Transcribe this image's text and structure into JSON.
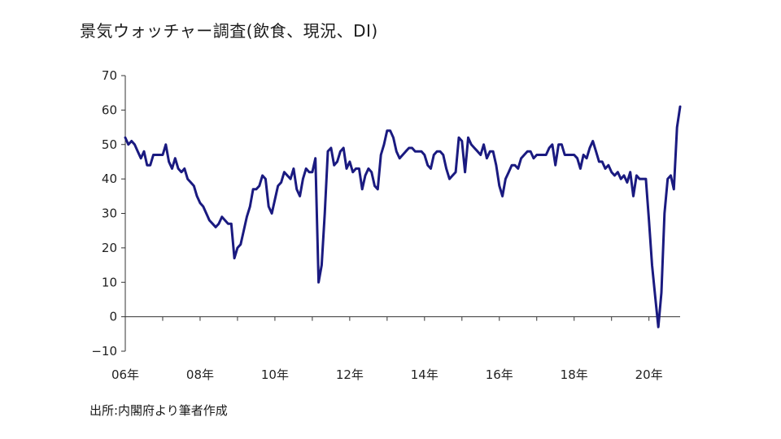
{
  "chart_title": "景気ウォッチャー調査(飲食、現況、DI)",
  "source": "出所:内閣府より筆者作成",
  "colors": {
    "line": "#1a1a80",
    "axis": "#333333"
  },
  "chart_data": {
    "type": "line",
    "title": "景気ウォッチャー調査(飲食、現況、DI)",
    "xlabel": "",
    "ylabel": "",
    "ylim": [
      -10,
      70
    ],
    "yticks": [
      "70",
      "60",
      "50",
      "40",
      "30",
      "20",
      "10",
      "0",
      "−10"
    ],
    "xticks": [
      "06年",
      "08年",
      "10年",
      "12年",
      "14年",
      "16年",
      "18年",
      "20年"
    ],
    "xlim": [
      "2006-01",
      "2020-11"
    ],
    "grid": false,
    "series": [
      {
        "values": [
          [
            "2006-01",
            52
          ],
          [
            "2006-02",
            50
          ],
          [
            "2006-03",
            51
          ],
          [
            "2006-04",
            50
          ],
          [
            "2006-05",
            48
          ],
          [
            "2006-06",
            46
          ],
          [
            "2006-07",
            48
          ],
          [
            "2006-08",
            44
          ],
          [
            "2006-09",
            44
          ],
          [
            "2006-10",
            47
          ],
          [
            "2006-11",
            47
          ],
          [
            "2006-12",
            47
          ],
          [
            "2007-01",
            47
          ],
          [
            "2007-02",
            50
          ],
          [
            "2007-03",
            45
          ],
          [
            "2007-04",
            43
          ],
          [
            "2007-05",
            46
          ],
          [
            "2007-06",
            43
          ],
          [
            "2007-07",
            42
          ],
          [
            "2007-08",
            43
          ],
          [
            "2007-09",
            40
          ],
          [
            "2007-10",
            39
          ],
          [
            "2007-11",
            38
          ],
          [
            "2007-12",
            35
          ],
          [
            "2008-01",
            33
          ],
          [
            "2008-02",
            32
          ],
          [
            "2008-03",
            30
          ],
          [
            "2008-04",
            28
          ],
          [
            "2008-05",
            27
          ],
          [
            "2008-06",
            26
          ],
          [
            "2008-07",
            27
          ],
          [
            "2008-08",
            29
          ],
          [
            "2008-09",
            28
          ],
          [
            "2008-10",
            27
          ],
          [
            "2008-11",
            27
          ],
          [
            "2008-12",
            17
          ],
          [
            "2009-01",
            20
          ],
          [
            "2009-02",
            21
          ],
          [
            "2009-03",
            25
          ],
          [
            "2009-04",
            29
          ],
          [
            "2009-05",
            32
          ],
          [
            "2009-06",
            37
          ],
          [
            "2009-07",
            37
          ],
          [
            "2009-08",
            38
          ],
          [
            "2009-09",
            41
          ],
          [
            "2009-10",
            40
          ],
          [
            "2009-11",
            32
          ],
          [
            "2009-12",
            30
          ],
          [
            "2010-01",
            34
          ],
          [
            "2010-02",
            38
          ],
          [
            "2010-03",
            39
          ],
          [
            "2010-04",
            42
          ],
          [
            "2010-05",
            41
          ],
          [
            "2010-06",
            40
          ],
          [
            "2010-07",
            43
          ],
          [
            "2010-08",
            37
          ],
          [
            "2010-09",
            35
          ],
          [
            "2010-10",
            40
          ],
          [
            "2010-11",
            43
          ],
          [
            "2010-12",
            42
          ],
          [
            "2011-01",
            42
          ],
          [
            "2011-02",
            46
          ],
          [
            "2011-03",
            10
          ],
          [
            "2011-04",
            15
          ],
          [
            "2011-05",
            30
          ],
          [
            "2011-06",
            48
          ],
          [
            "2011-07",
            49
          ],
          [
            "2011-08",
            44
          ],
          [
            "2011-09",
            45
          ],
          [
            "2011-10",
            48
          ],
          [
            "2011-11",
            49
          ],
          [
            "2011-12",
            43
          ],
          [
            "2012-01",
            45
          ],
          [
            "2012-02",
            42
          ],
          [
            "2012-03",
            43
          ],
          [
            "2012-04",
            43
          ],
          [
            "2012-05",
            37
          ],
          [
            "2012-06",
            41
          ],
          [
            "2012-07",
            43
          ],
          [
            "2012-08",
            42
          ],
          [
            "2012-09",
            38
          ],
          [
            "2012-10",
            37
          ],
          [
            "2012-11",
            47
          ],
          [
            "2012-12",
            50
          ],
          [
            "2013-01",
            54
          ],
          [
            "2013-02",
            54
          ],
          [
            "2013-03",
            52
          ],
          [
            "2013-04",
            48
          ],
          [
            "2013-05",
            46
          ],
          [
            "2013-06",
            47
          ],
          [
            "2013-07",
            48
          ],
          [
            "2013-08",
            49
          ],
          [
            "2013-09",
            49
          ],
          [
            "2013-10",
            48
          ],
          [
            "2013-11",
            48
          ],
          [
            "2013-12",
            48
          ],
          [
            "2014-01",
            47
          ],
          [
            "2014-02",
            44
          ],
          [
            "2014-03",
            43
          ],
          [
            "2014-04",
            47
          ],
          [
            "2014-05",
            48
          ],
          [
            "2014-06",
            48
          ],
          [
            "2014-07",
            47
          ],
          [
            "2014-08",
            43
          ],
          [
            "2014-09",
            40
          ],
          [
            "2014-10",
            41
          ],
          [
            "2014-11",
            42
          ],
          [
            "2014-12",
            52
          ],
          [
            "2015-01",
            51
          ],
          [
            "2015-02",
            42
          ],
          [
            "2015-03",
            52
          ],
          [
            "2015-04",
            50
          ],
          [
            "2015-05",
            49
          ],
          [
            "2015-06",
            48
          ],
          [
            "2015-07",
            47
          ],
          [
            "2015-08",
            50
          ],
          [
            "2015-09",
            46
          ],
          [
            "2015-10",
            48
          ],
          [
            "2015-11",
            48
          ],
          [
            "2015-12",
            44
          ],
          [
            "2016-01",
            38
          ],
          [
            "2016-02",
            35
          ],
          [
            "2016-03",
            40
          ],
          [
            "2016-04",
            42
          ],
          [
            "2016-05",
            44
          ],
          [
            "2016-06",
            44
          ],
          [
            "2016-07",
            43
          ],
          [
            "2016-08",
            46
          ],
          [
            "2016-09",
            47
          ],
          [
            "2016-10",
            48
          ],
          [
            "2016-11",
            48
          ],
          [
            "2016-12",
            46
          ],
          [
            "2017-01",
            47
          ],
          [
            "2017-02",
            47
          ],
          [
            "2017-03",
            47
          ],
          [
            "2017-04",
            47
          ],
          [
            "2017-05",
            49
          ],
          [
            "2017-06",
            50
          ],
          [
            "2017-07",
            44
          ],
          [
            "2017-08",
            50
          ],
          [
            "2017-09",
            50
          ],
          [
            "2017-10",
            47
          ],
          [
            "2017-11",
            47
          ],
          [
            "2017-12",
            47
          ],
          [
            "2018-01",
            47
          ],
          [
            "2018-02",
            46
          ],
          [
            "2018-03",
            43
          ],
          [
            "2018-04",
            47
          ],
          [
            "2018-05",
            46
          ],
          [
            "2018-06",
            49
          ],
          [
            "2018-07",
            51
          ],
          [
            "2018-08",
            48
          ],
          [
            "2018-09",
            45
          ],
          [
            "2018-10",
            45
          ],
          [
            "2018-11",
            43
          ],
          [
            "2018-12",
            44
          ],
          [
            "2019-01",
            42
          ],
          [
            "2019-02",
            41
          ],
          [
            "2019-03",
            42
          ],
          [
            "2019-04",
            40
          ],
          [
            "2019-05",
            41
          ],
          [
            "2019-06",
            39
          ],
          [
            "2019-07",
            42
          ],
          [
            "2019-08",
            35
          ],
          [
            "2019-09",
            41
          ],
          [
            "2019-10",
            40
          ],
          [
            "2019-11",
            40
          ],
          [
            "2019-12",
            40
          ],
          [
            "2020-01",
            28
          ],
          [
            "2020-02",
            15
          ],
          [
            "2020-03",
            6
          ],
          [
            "2020-04",
            -3
          ],
          [
            "2020-05",
            7
          ],
          [
            "2020-06",
            30
          ],
          [
            "2020-07",
            40
          ],
          [
            "2020-08",
            41
          ],
          [
            "2020-09",
            37
          ],
          [
            "2020-10",
            55
          ],
          [
            "2020-11",
            61
          ]
        ]
      }
    ]
  }
}
